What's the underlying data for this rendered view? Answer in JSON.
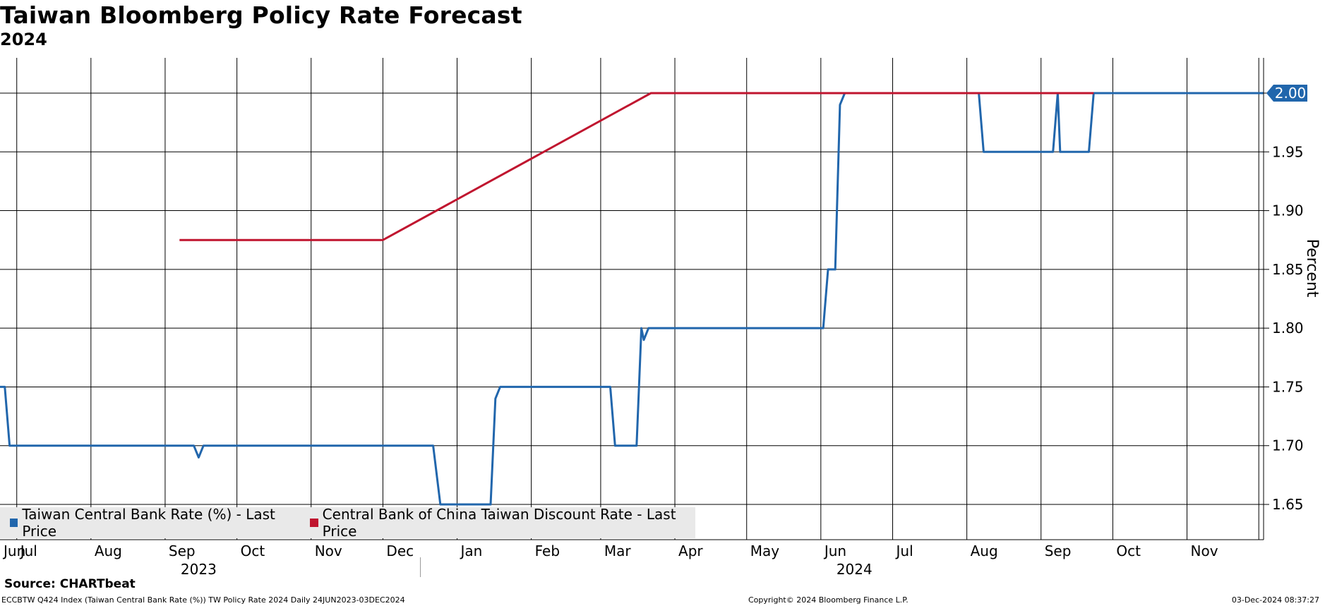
{
  "header": {
    "title": "Taiwan Bloomberg Policy Rate Forecast",
    "subtitle": "2024"
  },
  "legend": [
    {
      "label": "Taiwan Central Bank Rate (%) - Last Price",
      "color": "#2166ac"
    },
    {
      "label": "Central Bank of China Taiwan Discount Rate - Last Price",
      "color": "#c0152f"
    }
  ],
  "footer": {
    "source": "Source: CHARTbeat",
    "left": "ECCBTW Q424 Index (Taiwan Central Bank Rate (%)) TW Policy Rate 2024  Daily 24JUN2023-03DEC2024",
    "center": "Copyright© 2024 Bloomberg Finance L.P.",
    "right": "03-Dec-2024 08:37:27"
  },
  "chart_data": {
    "type": "line",
    "title": "Taiwan Bloomberg Policy Rate Forecast",
    "subtitle": "2024",
    "ylabel": "Percent",
    "ylim": [
      1.62,
      2.03
    ],
    "yticks": [
      1.65,
      1.7,
      1.75,
      1.8,
      1.85,
      1.9,
      1.95,
      2.0
    ],
    "xlim": [
      "2023-06-24",
      "2024-12-03"
    ],
    "xtick_labels": [
      {
        "date": "2023-06-01",
        "label": "Jun"
      },
      {
        "date": "2023-07-01",
        "label": "Jul"
      },
      {
        "date": "2023-08-01",
        "label": "Aug"
      },
      {
        "date": "2023-09-01",
        "label": "Sep"
      },
      {
        "date": "2023-10-01",
        "label": "Oct"
      },
      {
        "date": "2023-11-01",
        "label": "Nov"
      },
      {
        "date": "2023-12-01",
        "label": "Dec"
      },
      {
        "date": "2024-01-01",
        "label": "Jan"
      },
      {
        "date": "2024-02-01",
        "label": "Feb"
      },
      {
        "date": "2024-03-01",
        "label": "Mar"
      },
      {
        "date": "2024-04-01",
        "label": "Apr"
      },
      {
        "date": "2024-05-01",
        "label": "May"
      },
      {
        "date": "2024-06-01",
        "label": "Jun"
      },
      {
        "date": "2024-07-01",
        "label": "Jul"
      },
      {
        "date": "2024-08-01",
        "label": "Aug"
      },
      {
        "date": "2024-09-01",
        "label": "Sep"
      },
      {
        "date": "2024-10-01",
        "label": "Oct"
      },
      {
        "date": "2024-11-01",
        "label": "Nov"
      }
    ],
    "gridline_dates": [
      "2023-06-01",
      "2023-07-01",
      "2023-08-01",
      "2023-09-01",
      "2023-10-01",
      "2023-11-01",
      "2023-12-01",
      "2024-01-01",
      "2024-02-01",
      "2024-03-01",
      "2024-04-01",
      "2024-05-01",
      "2024-06-01",
      "2024-07-01",
      "2024-08-01",
      "2024-09-01",
      "2024-10-01",
      "2024-11-01",
      "2024-12-01"
    ],
    "year_labels": [
      {
        "date": "2023-09-15",
        "label": "2023"
      },
      {
        "date": "2024-06-15",
        "label": "2024"
      }
    ],
    "year_divider_date": "2024-01-01",
    "last_value_label": "2.00",
    "grid": true,
    "legend_position": "bottom-left",
    "series": [
      {
        "name": "Taiwan Central Bank Rate (%) - Last Price",
        "color": "#2166ac",
        "points": [
          [
            "2023-06-24",
            1.75
          ],
          [
            "2023-06-26",
            1.75
          ],
          [
            "2023-06-28",
            1.7
          ],
          [
            "2023-09-13",
            1.7
          ],
          [
            "2023-09-15",
            1.69
          ],
          [
            "2023-09-17",
            1.7
          ],
          [
            "2023-12-22",
            1.7
          ],
          [
            "2023-12-25",
            1.65
          ],
          [
            "2024-01-15",
            1.65
          ],
          [
            "2024-01-17",
            1.74
          ],
          [
            "2024-01-19",
            1.75
          ],
          [
            "2024-03-05",
            1.75
          ],
          [
            "2024-03-07",
            1.7
          ],
          [
            "2024-03-16",
            1.7
          ],
          [
            "2024-03-18",
            1.8
          ],
          [
            "2024-03-19",
            1.79
          ],
          [
            "2024-03-21",
            1.8
          ],
          [
            "2024-06-02",
            1.8
          ],
          [
            "2024-06-04",
            1.85
          ],
          [
            "2024-06-07",
            1.85
          ],
          [
            "2024-06-09",
            1.99
          ],
          [
            "2024-06-11",
            2.0
          ],
          [
            "2024-08-06",
            2.0
          ],
          [
            "2024-08-08",
            1.95
          ],
          [
            "2024-09-06",
            1.95
          ],
          [
            "2024-09-08",
            2.0
          ],
          [
            "2024-09-09",
            1.95
          ],
          [
            "2024-09-21",
            1.95
          ],
          [
            "2024-09-23",
            2.0
          ],
          [
            "2024-12-03",
            2.0
          ]
        ]
      },
      {
        "name": "Central Bank of China Taiwan Discount Rate - Last Price",
        "color": "#c0152f",
        "points": [
          [
            "2023-09-07",
            1.875
          ],
          [
            "2023-12-01",
            1.875
          ],
          [
            "2024-03-22",
            2.0
          ],
          [
            "2024-09-23",
            2.0
          ]
        ]
      }
    ]
  }
}
